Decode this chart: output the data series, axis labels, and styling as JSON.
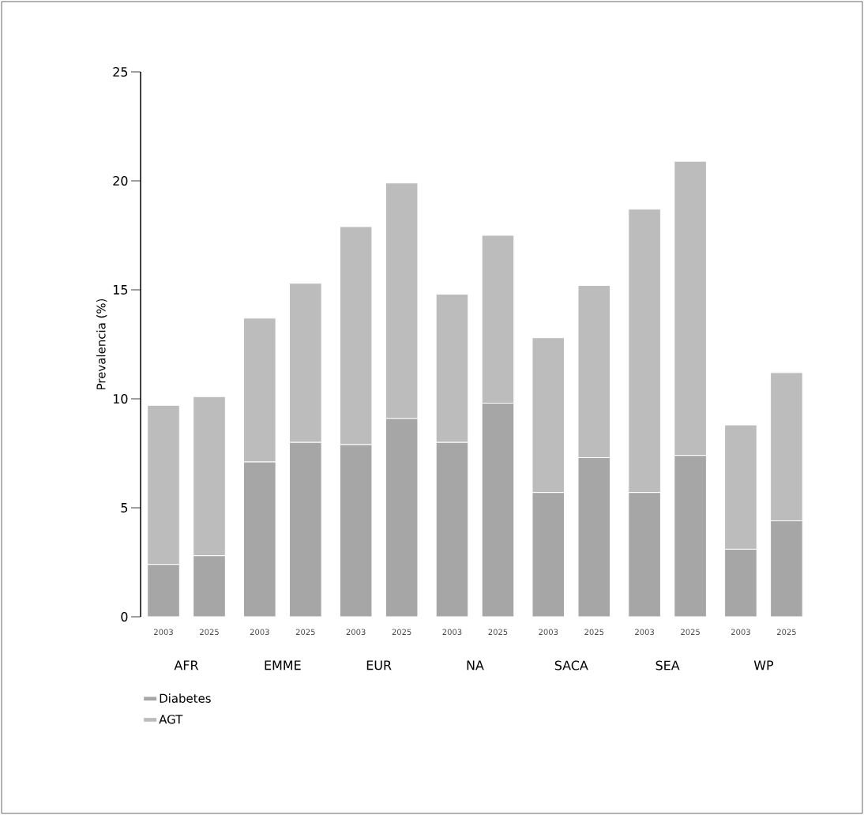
{
  "chart_data": {
    "type": "bar",
    "stacked": true,
    "ylabel": "Prevalencia (%)",
    "categories": [
      "2003",
      "2025",
      "2003",
      "2025",
      "2003",
      "2025",
      "2003",
      "2025",
      "2003",
      "2025",
      "2003",
      "2025",
      "2003",
      "2025"
    ],
    "series": [
      {
        "name": "Diabetes",
        "color": "#a6a6a6",
        "values": [
          2.4,
          2.8,
          7.1,
          8.0,
          7.9,
          9.1,
          8.0,
          9.8,
          5.7,
          7.3,
          5.7,
          7.4,
          3.1,
          4.4
        ]
      },
      {
        "name": "AGT",
        "color": "#bcbcbc",
        "values": [
          7.3,
          7.3,
          6.6,
          7.3,
          10.0,
          10.8,
          6.8,
          7.7,
          7.1,
          7.9,
          13.0,
          13.5,
          5.7,
          6.8
        ]
      }
    ],
    "annotations": [
      "AFR",
      "EMME",
      "EUR",
      "NA",
      "SACA",
      "SEA",
      "WP"
    ],
    "ylim": [
      0,
      25
    ],
    "yticks": [
      0,
      5,
      10,
      15,
      20,
      25
    ],
    "grid": false,
    "legend": "bottom left"
  }
}
